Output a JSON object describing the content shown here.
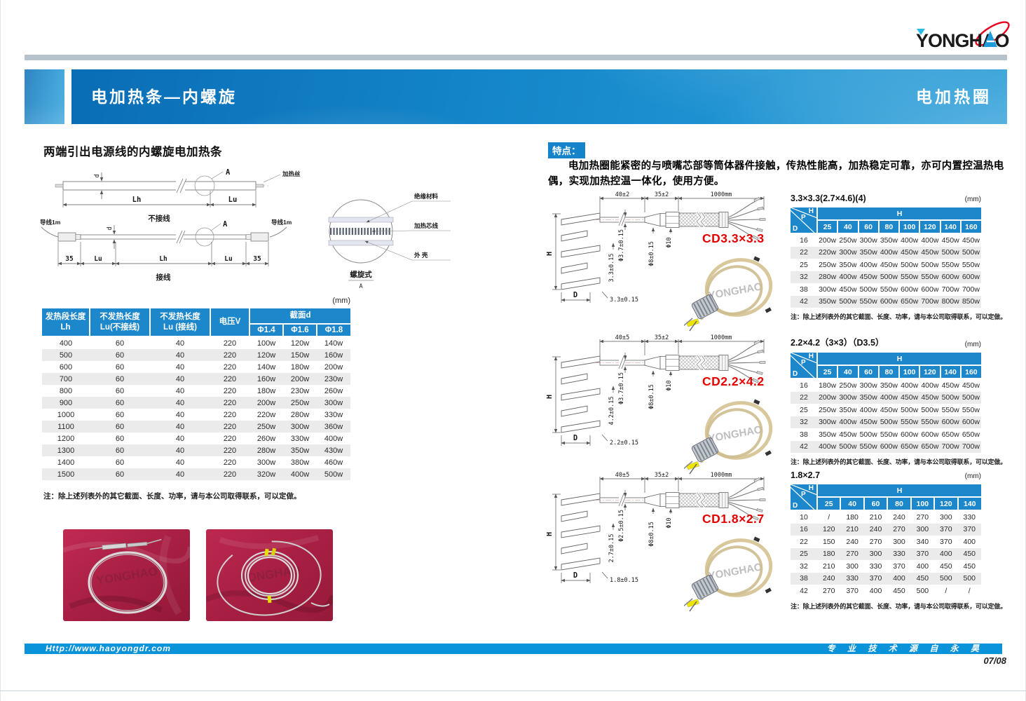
{
  "header": {
    "logo": "YONGHAO"
  },
  "banner": {
    "left_title": "电加热条—内螺旋",
    "right_title": "电加热圈"
  },
  "left": {
    "subtitle": "两端引出电源线的内螺旋电加热条",
    "drawing": {
      "dim_d": "d",
      "callout_a": "A",
      "heating_wire": "加热丝",
      "lh": "Lh",
      "lu": "Lu",
      "n35": "35",
      "cap_top": "不接线",
      "cap_bottom": "接线",
      "lead": "导线1m",
      "det_insulation": "绝缘材料",
      "det_core": "加热芯线",
      "det_shell": "外  壳",
      "det_caption": "螺旋式",
      "det_sub": "A"
    },
    "table": {
      "unit": "(mm)",
      "col1a": "发热段长度",
      "col1b": "Lh",
      "col2a": "不发热长度",
      "col2b": "Lu(不接线)",
      "col3a": "不发热长度",
      "col3b": "Lu (接线)",
      "col4": "电压V",
      "col5": "截面d",
      "sub_cols": [
        "Φ1.4",
        "Φ1.6",
        "Φ1.8"
      ],
      "rows": [
        [
          "400",
          "60",
          "40",
          "220",
          "100w",
          "120w",
          "140w"
        ],
        [
          "500",
          "60",
          "40",
          "220",
          "120w",
          "150w",
          "160w"
        ],
        [
          "600",
          "60",
          "40",
          "220",
          "140w",
          "180w",
          "200w"
        ],
        [
          "700",
          "60",
          "40",
          "220",
          "160w",
          "200w",
          "230w"
        ],
        [
          "800",
          "60",
          "40",
          "220",
          "180w",
          "230w",
          "260w"
        ],
        [
          "900",
          "60",
          "40",
          "220",
          "200w",
          "250w",
          "300w"
        ],
        [
          "1000",
          "60",
          "40",
          "220",
          "220w",
          "280w",
          "330w"
        ],
        [
          "1100",
          "60",
          "40",
          "220",
          "250w",
          "300w",
          "360w"
        ],
        [
          "1200",
          "60",
          "40",
          "220",
          "260w",
          "330w",
          "400w"
        ],
        [
          "1300",
          "60",
          "40",
          "220",
          "280w",
          "350w",
          "430w"
        ],
        [
          "1400",
          "60",
          "40",
          "220",
          "300w",
          "380w",
          "460w"
        ],
        [
          "1500",
          "60",
          "40",
          "220",
          "320w",
          "400w",
          "500w"
        ]
      ]
    },
    "note": "注：除上述列表外的其它截面、长度、功率，请与本公司取得联系，可以定做。"
  },
  "right": {
    "features_label": "特点：",
    "features_text": "电加热圈能紧密的与喷嘴芯部等筒体器件接触，传热性能高，加热稳定可靠，亦可内置控温热电偶，实现加热控温一体化，使用方便。",
    "products": [
      {
        "model": "CD3.3×3.3",
        "dims": {
          "seg1": "40±2",
          "seg2": "35±2",
          "seg3": "1000mm",
          "rod": "Φ3.7±0.15",
          "pitch": "3.3±0.15",
          "wire": "3.3±0.15",
          "ferrule": "Φ8±0.15",
          "nut": "Φ10",
          "h": "H",
          "d": "D"
        },
        "table": {
          "title": "3.3×3.3(2.7×4.6)(4)",
          "unit": "(mm)",
          "corner_h": "H",
          "corner_p": "P",
          "corner_d": "D",
          "span_label": "H",
          "colspan": "8",
          "cols": [
            "25",
            "40",
            "60",
            "80",
            "100",
            "120",
            "140",
            "160"
          ],
          "rows": [
            [
              "16",
              "200w",
              "250w",
              "300w",
              "350w",
              "400w",
              "400w",
              "450w",
              "450w"
            ],
            [
              "22",
              "220w",
              "300w",
              "350w",
              "400w",
              "450w",
              "450w",
              "500w",
              "500w"
            ],
            [
              "25",
              "250w",
              "350w",
              "400w",
              "450w",
              "500w",
              "500w",
              "550w",
              "550w"
            ],
            [
              "32",
              "280w",
              "400w",
              "450w",
              "500w",
              "550w",
              "550w",
              "600w",
              "600w"
            ],
            [
              "38",
              "300w",
              "450w",
              "500w",
              "550w",
              "600w",
              "600w",
              "700w",
              "700w"
            ],
            [
              "42",
              "350w",
              "500w",
              "550w",
              "600w",
              "650w",
              "700w",
              "800w",
              "850w"
            ]
          ],
          "note": "注：除上述列表外的其它截面、长度、功率，请与本公司取得联系，可以定做。"
        }
      },
      {
        "model": "CD2.2×4.2",
        "dims": {
          "seg1": "40±5",
          "seg2": "35±2",
          "seg3": "1000mm",
          "rod": "Φ3.7±0.15",
          "pitch": "4.2±0.15",
          "wire": "2.2±0.15",
          "ferrule": "Φ8±0.15",
          "nut": "Φ10",
          "h": "H",
          "d": "D"
        },
        "table": {
          "title": "2.2×4.2（3×3）（D3.5）",
          "unit": "(mm)",
          "corner_h": "H",
          "corner_p": "P",
          "corner_d": "D",
          "span_label": "H",
          "colspan": "8",
          "cols": [
            "25",
            "40",
            "60",
            "80",
            "100",
            "120",
            "140",
            "160"
          ],
          "rows": [
            [
              "16",
              "180w",
              "250w",
              "300w",
              "350w",
              "400w",
              "400w",
              "450w",
              "450w"
            ],
            [
              "22",
              "200w",
              "300w",
              "350w",
              "400w",
              "450w",
              "450w",
              "500w",
              "500w"
            ],
            [
              "25",
              "250w",
              "350w",
              "400w",
              "450w",
              "500w",
              "500w",
              "550w",
              "550w"
            ],
            [
              "32",
              "300w",
              "400w",
              "450w",
              "500w",
              "550w",
              "550w",
              "600w",
              "600w"
            ],
            [
              "38",
              "350w",
              "450w",
              "500w",
              "550w",
              "600w",
              "600w",
              "650w",
              "650w"
            ],
            [
              "42",
              "400w",
              "500w",
              "550w",
              "600w",
              "650w",
              "650w",
              "700w",
              "700w"
            ]
          ],
          "note": "注：除上述列表外的其它截面、长度、功率，请与本公司取得联系，可以定做。"
        }
      },
      {
        "model": "CD1.8×2.7",
        "dims": {
          "seg1": "40±5",
          "seg2": "35±2",
          "seg3": "1000mm",
          "rod": "Φ2.5±0.15",
          "pitch": "2.7±0.15",
          "wire": "1.8±0.15",
          "ferrule": "Φ8±0.15",
          "nut": "Φ10",
          "h": "H",
          "d": "D"
        },
        "table": {
          "title": "1.8×2.7",
          "unit": "(mm)",
          "corner_h": "H",
          "corner_p": "P",
          "corner_d": "D",
          "span_label": "H",
          "colspan": "7",
          "cols": [
            "25",
            "40",
            "60",
            "80",
            "100",
            "120",
            "140"
          ],
          "rows": [
            [
              "10",
              "/",
              "180",
              "210",
              "240",
              "270",
              "300",
              "330"
            ],
            [
              "16",
              "120",
              "210",
              "240",
              "270",
              "300",
              "370",
              "370"
            ],
            [
              "22",
              "150",
              "240",
              "270",
              "300",
              "340",
              "370",
              "400"
            ],
            [
              "25",
              "180",
              "270",
              "300",
              "330",
              "370",
              "400",
              "450"
            ],
            [
              "32",
              "210",
              "300",
              "330",
              "370",
              "400",
              "450",
              "450"
            ],
            [
              "38",
              "240",
              "330",
              "370",
              "400",
              "450",
              "500",
              "500"
            ],
            [
              "42",
              "270",
              "370",
              "400",
              "450",
              "500",
              "/",
              "/"
            ]
          ],
          "note": "注：除上述列表外的其它截面、长度、功率，请与本公司取得联系，可以定做。"
        }
      }
    ]
  },
  "footer": {
    "url": "Http://www.haoyongdr.com",
    "slogan": "专 业 技 术 源 自 永 昊",
    "page": "07/08"
  }
}
